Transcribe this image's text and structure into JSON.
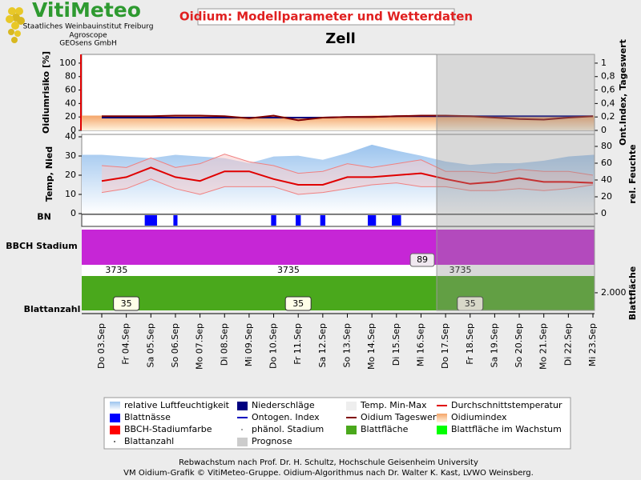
{
  "header": {
    "logo_title": "VitiMeteo",
    "logo_lines": [
      "Staatliches Weinbauinstitut Freiburg",
      "Agroscope",
      "GEOsens GmbH"
    ],
    "title": "Oidium: Modellparameter und Wetterdaten",
    "location": "Zell"
  },
  "x_axis": {
    "categories": [
      "Do 03.Sep",
      "Fr 04.Sep",
      "Sa 05.Sep",
      "So 06.Sep",
      "Mo 07.Sep",
      "Di 08.Sep",
      "Mi 09.Sep",
      "Do 10.Sep",
      "Fr 11.Sep",
      "Sa 12.Sep",
      "So 13.Sep",
      "Mo 14.Sep",
      "Di 15.Sep",
      "Mi 16.Sep",
      "Do 17.Sep",
      "Fr 18.Sep",
      "Sa 19.Sep",
      "So 20.Sep",
      "Mo 21.Sep",
      "Di 22.Sep",
      "Mi 23.Sep"
    ],
    "prognose_start": 13.64
  },
  "chart_data": [
    {
      "type": "line",
      "ylabel": "Oidiumrisiko [%]",
      "y2label": "Ont.Index, Tageswert",
      "ylim": [
        0,
        113
      ],
      "yticks": [
        0,
        20,
        40,
        60,
        80,
        100
      ],
      "y2lim": [
        0,
        1.13
      ],
      "y2ticks": [
        0,
        {
          "value": 0.2,
          "label": "0,2"
        },
        {
          "value": 0.4,
          "label": "0,4"
        },
        {
          "value": 0.6,
          "label": "0,6"
        },
        {
          "value": 0.8,
          "label": "0,8"
        },
        1
      ],
      "series": [
        {
          "style": "area",
          "color": "#f4a468",
          "values": [
            22,
            22,
            22,
            21,
            21,
            21,
            20,
            21,
            20,
            20,
            21,
            22,
            22,
            22,
            22,
            22,
            21,
            20,
            20,
            21,
            22
          ]
        },
        {
          "style": "line",
          "axis": "y2",
          "color": "#000080",
          "values": [
            0.19,
            0.19,
            0.19,
            0.19,
            0.19,
            0.19,
            0.19,
            0.19,
            0.19,
            0.19,
            0.2,
            0.2,
            0.21,
            0.21,
            0.21,
            0.21,
            0.21,
            0.21,
            0.21,
            0.21,
            0.21
          ]
        },
        {
          "style": "line",
          "axis": "y2",
          "color": "#800000",
          "values": [
            0.21,
            0.21,
            0.21,
            0.22,
            0.22,
            0.21,
            0.18,
            0.22,
            0.15,
            0.19,
            0.2,
            0.2,
            0.21,
            0.22,
            0.22,
            0.21,
            0.19,
            0.17,
            0.16,
            0.19,
            0.21
          ]
        }
      ]
    },
    {
      "type": "line",
      "ylabel": "Temp, Nied",
      "y2label": "rel. Feuchte",
      "ylim": [
        0,
        41.25
      ],
      "yticks": [
        0,
        10,
        20,
        30,
        40
      ],
      "y2lim": [
        0,
        94.3
      ],
      "y2ticks": [
        0,
        20,
        40,
        60,
        80
      ],
      "series": [
        {
          "style": "area",
          "axis": "y2",
          "color": "#9cc4ee",
          "values": [
            70,
            68,
            66,
            70,
            68,
            66,
            60,
            68,
            69,
            64,
            72,
            82,
            75,
            69,
            62,
            58,
            60,
            60,
            63,
            68,
            70
          ]
        },
        {
          "style": "range",
          "color": "#f08080",
          "low": [
            11,
            13,
            18,
            13,
            10,
            14,
            14,
            14,
            10,
            11,
            13,
            15,
            16,
            14,
            14,
            12,
            12,
            13,
            12,
            13,
            15
          ],
          "high": [
            25,
            24,
            29,
            24,
            26,
            31,
            27,
            25,
            21,
            22,
            26,
            24,
            26,
            28,
            22,
            22,
            21,
            23,
            22,
            22,
            20
          ]
        },
        {
          "style": "line",
          "color": "#e00000",
          "values": [
            17,
            19,
            24,
            19,
            17,
            22,
            22,
            18,
            15,
            15,
            19,
            19,
            20,
            21,
            18,
            15.5,
            16.5,
            18.5,
            16.5,
            16.5,
            16
          ]
        }
      ]
    },
    {
      "type": "bar",
      "ylabel": "BN",
      "ylim": [
        0,
        24
      ],
      "color": "#0000ff",
      "values": [
        0,
        0,
        12,
        4,
        0,
        0,
        0,
        5,
        5,
        5,
        0,
        8,
        9,
        0,
        0,
        0,
        0,
        0,
        0,
        0,
        0
      ]
    },
    {
      "type": "band",
      "ylabel": "BBCH Stadium",
      "color": "#c626d6",
      "value": 89,
      "value_label": "89",
      "phase_labels": [
        "3735",
        "3735",
        "3735"
      ],
      "phase_positions": [
        0.6,
        7.6,
        14.6
      ]
    },
    {
      "type": "area",
      "ylabel": "Blattanzahl",
      "y2label": "Blattfläche",
      "color": "#4aa81c",
      "ylim": [
        0,
        3900
      ],
      "y2ticks": [
        {
          "value": 2000,
          "label": "2.000"
        }
      ],
      "values": [
        3900,
        3900,
        3900,
        3900,
        3900,
        3900,
        3900,
        3900,
        3900,
        3900,
        3900,
        3900,
        3900,
        3900,
        3900,
        3900,
        3900,
        3900,
        3900,
        3900,
        3900
      ],
      "leaf_count_positions": [
        1,
        8,
        15
      ],
      "leaf_counts": [
        35,
        35,
        35
      ]
    }
  ],
  "legend": [
    {
      "name": "relative Luftfeuchtigkeit",
      "color": "#9cc4ee"
    },
    {
      "name": "Niederschläge",
      "color": "#000080"
    },
    {
      "name": "Temp. Min-Max",
      "color": "#eeeeee"
    },
    {
      "name": "Durchschnittstemperatur",
      "color": "#e00000"
    },
    {
      "name": "Blattnässe",
      "color": "#0000ff"
    },
    {
      "name": "Ontogen. Index",
      "color": "#0000c0"
    },
    {
      "name": "Oidium Tageswert",
      "color": "#800000"
    },
    {
      "name": "Oidiumindex",
      "color": "#f4a468"
    },
    {
      "name": "BBCH-Stadiumfarbe",
      "color": "#ff0000"
    },
    {
      "name": "phänol. Stadium",
      "color": "#888888"
    },
    {
      "name": "Blattfläche",
      "color": "#4aa81c"
    },
    {
      "name": "Blattfläche im Wachstum",
      "color": "#00ff00"
    },
    {
      "name": "Blattanzahl",
      "color": "#444444"
    },
    {
      "name": "Prognose",
      "color": "#cccccc"
    }
  ],
  "footer": [
    "Rebwachstum nach Prof. Dr. H. Schultz, Hochschule Geisenheim University",
    "VM Oidium-Grafik © VitiMeteo-Gruppe. Oidium-Algorithmus nach Dr. Walter K. Kast, LVWO Weinsberg."
  ]
}
